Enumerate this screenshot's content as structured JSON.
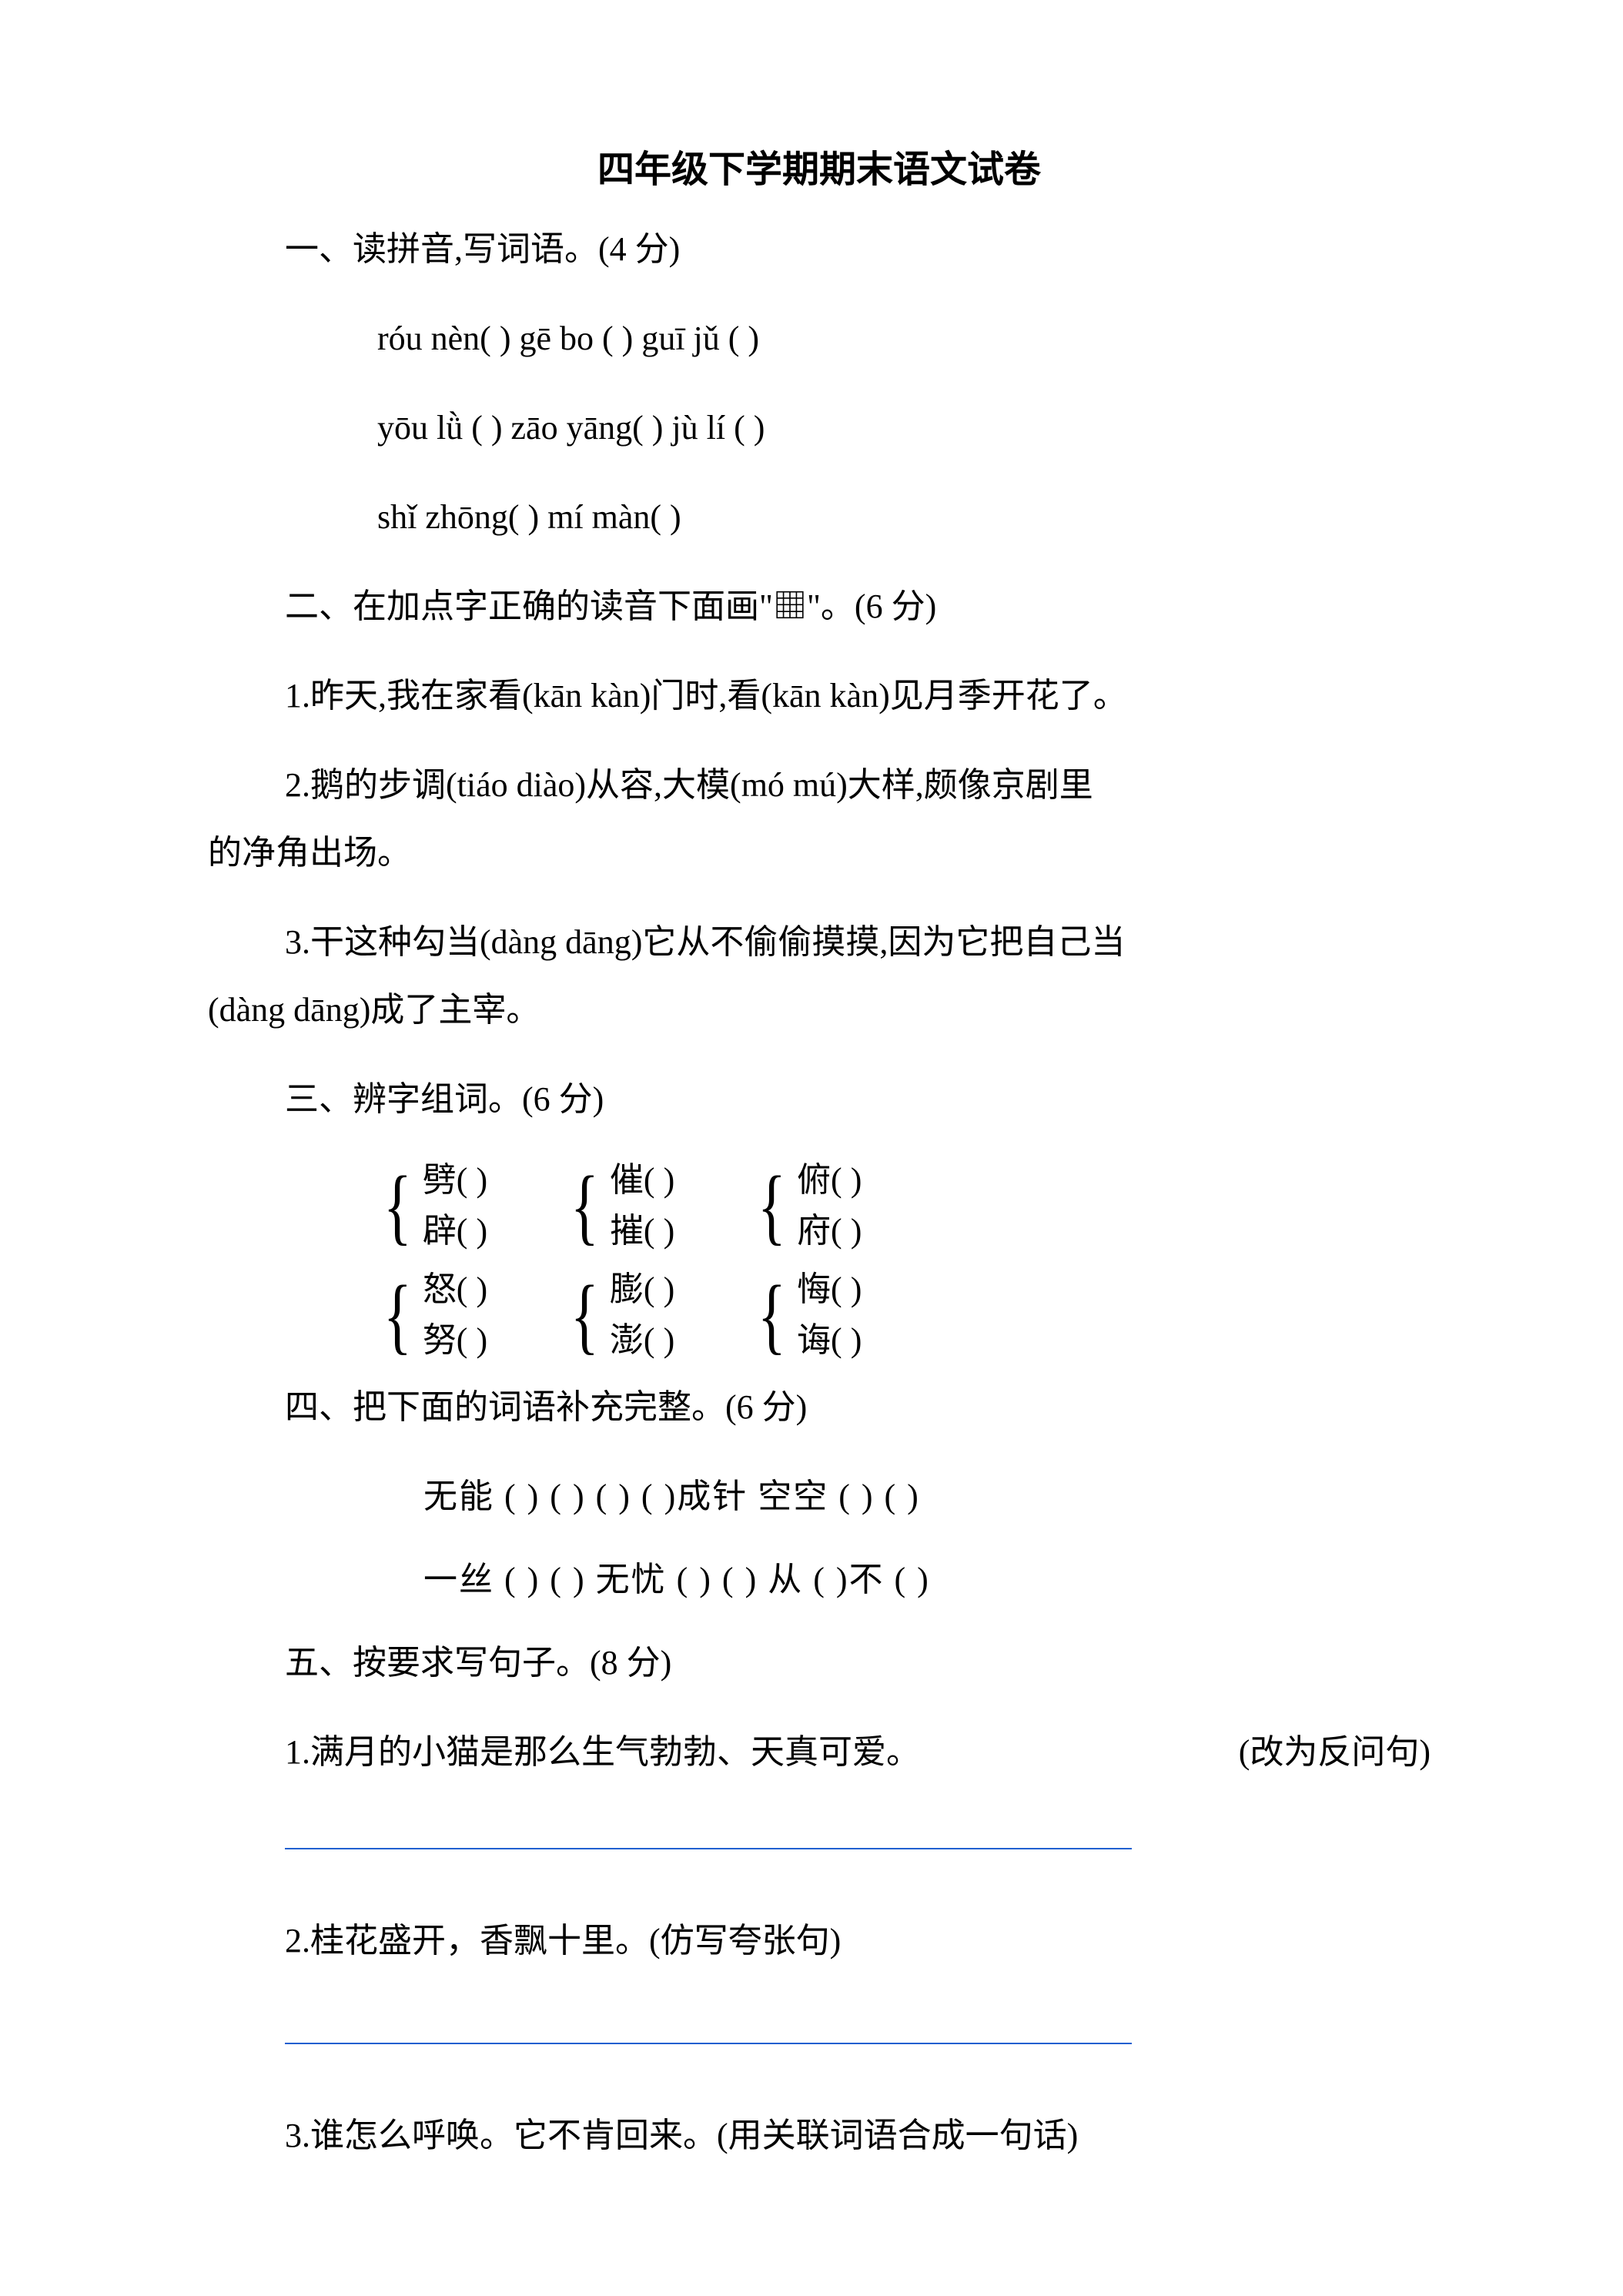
{
  "title": "四年级下学期期末语文试卷",
  "section1": {
    "heading": "一、读拼音,写词语。(4 分)",
    "row1": "róu nèn(       )      gē  bo (       )    guī jǔ   (       )",
    "row2": "yōu lǜ  (       )       zāo yāng(      )   jù  lí  (       )",
    "row3": "shǐ zhōng(      )     mí  màn(       )"
  },
  "section2": {
    "heading": "二、在加点字正确的读音下面画\"▦\"。(6 分)",
    "l1": "1.昨天,我在家看(kān   kàn)门时,看(kān   kàn)见月季开花了。",
    "l2a": "2.鹅的步调(tiáo   diào)从容,大模(mó   mú)大样,颇像京剧里",
    "l2b": "的净角出场。",
    "l3a": "3.干这种勾当(dàng   dāng)它从不偷偷摸摸,因为它把自己当",
    "l3b": "(dàng   dāng)成了主宰。"
  },
  "section3": {
    "heading": "三、辨字组词。(6 分)",
    "group1": [
      {
        "top": "劈(           )",
        "bot": "辟(           )"
      },
      {
        "top": "催(           )",
        "bot": "摧(           )"
      },
      {
        "top": "俯(           )",
        "bot": "府(           )"
      }
    ],
    "group2": [
      {
        "top": "怒(           )",
        "bot": "努(           )"
      },
      {
        "top": "膨(           )",
        "bot": "澎(           )"
      },
      {
        "top": "悔(           )",
        "bot": "诲(           )"
      }
    ]
  },
  "section4": {
    "heading": "四、把下面的词语补充完整。(6 分)",
    "row1": "无能 (    ) (    )       (    ) (    )成针          空空 (    ) (    )",
    "row2": "一丝 (    ) (    )      无忧 (    ) (    )        从 (    )不 (    )"
  },
  "section5": {
    "heading": "五、按要求写句子。(8 分)",
    "q1_text": "1.满月的小猫是那么生气勃勃、天真可爱。",
    "q1_note": "(改为反问句)",
    "q2": "2.桂花盛开，香飘十里。(仿写夸张句)",
    "q3": "3.谁怎么呼唤。它不肯回来。(用关联词语合成一句话)"
  },
  "colors": {
    "text": "#000000",
    "answer_line": "#2060d0",
    "background": "#ffffff"
  },
  "fonts": {
    "title_family": "SimHei",
    "body_family": "SimSun",
    "title_size_pt": 48,
    "body_size_pt": 44
  }
}
